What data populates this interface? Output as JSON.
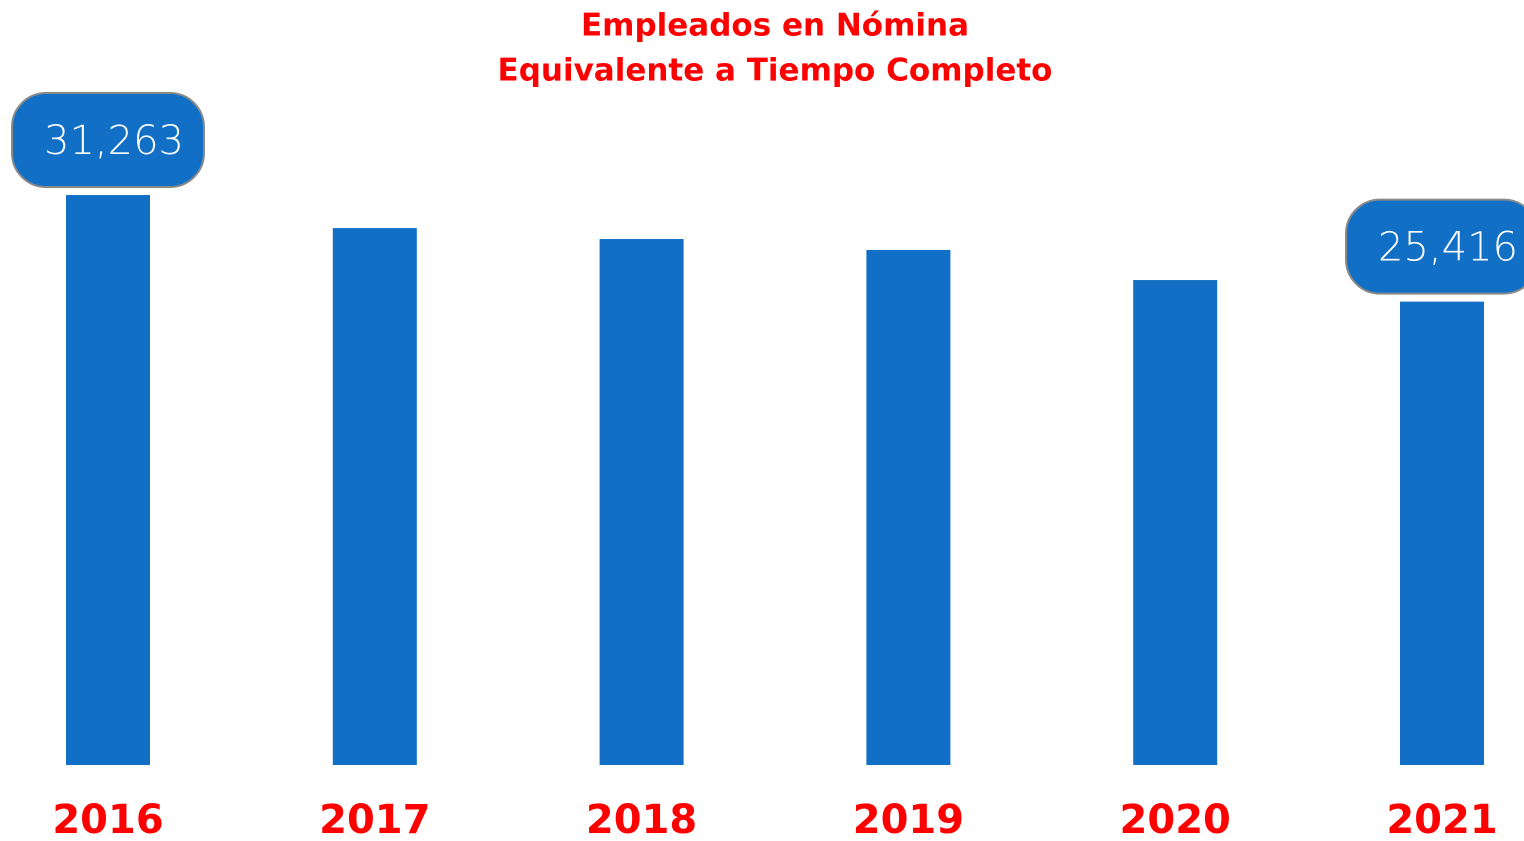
{
  "chart_data": {
    "type": "bar",
    "title": [
      "Empleados en Nómina",
      "Equivalente a Tiempo Completo"
    ],
    "categories": [
      "2016",
      "2017",
      "2018",
      "2019",
      "2020",
      "2021"
    ],
    "values": [
      31263,
      29450,
      28850,
      28250,
      26600,
      25416
    ],
    "value_labels": [
      "31,263",
      null,
      null,
      null,
      null,
      "25,416"
    ],
    "color": "#1170c6",
    "ylim": [
      0,
      32000
    ]
  }
}
